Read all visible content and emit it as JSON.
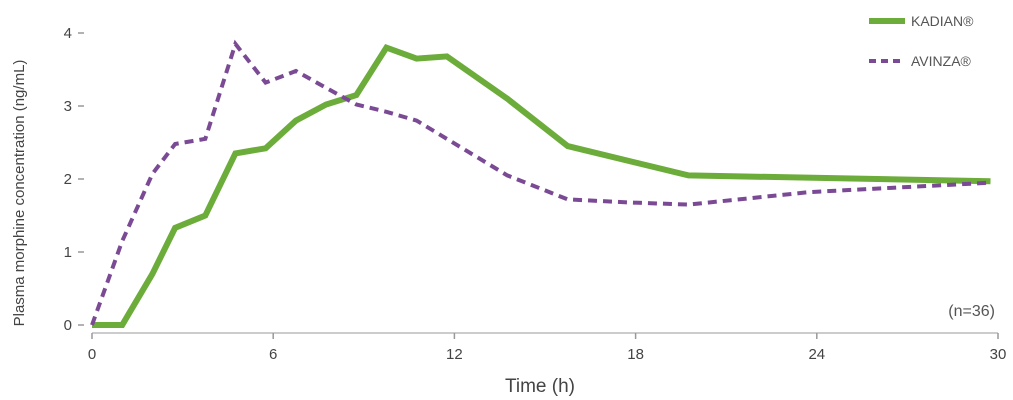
{
  "chart_data": {
    "type": "line",
    "xlabel": "Time (h)",
    "ylabel": "Plasma morphine concentration (ng/mL)",
    "xlim": [
      0,
      30
    ],
    "ylim": [
      0,
      4
    ],
    "x_ticks": [
      0,
      6,
      12,
      18,
      24,
      30
    ],
    "y_ticks": [
      0,
      1,
      2,
      3,
      4
    ],
    "grid": false,
    "legend_position": "top-right",
    "annotation": "(n=36)",
    "series": [
      {
        "name": "KADIAN®",
        "color": "#6cac3a",
        "style": "solid",
        "x": [
          0,
          1,
          2,
          2.75,
          3.75,
          4.75,
          5.75,
          6.75,
          7.75,
          8.75,
          9.75,
          10.75,
          11.75,
          13.75,
          15.75,
          19.75,
          29.75
        ],
        "y": [
          0.0,
          0.0,
          0.7,
          1.33,
          1.5,
          2.35,
          2.42,
          2.8,
          3.02,
          3.15,
          3.8,
          3.65,
          3.68,
          3.1,
          2.45,
          2.05,
          1.97
        ]
      },
      {
        "name": "AVINZA®",
        "color": "#7b4a94",
        "style": "dashed",
        "x": [
          0,
          1,
          2,
          2.75,
          3.75,
          4.75,
          5.75,
          6.75,
          7.75,
          8.75,
          9.75,
          10.75,
          11.75,
          13.75,
          15.75,
          17.75,
          19.75,
          23.75,
          29.75
        ],
        "y": [
          0.0,
          1.15,
          2.07,
          2.48,
          2.55,
          3.85,
          3.32,
          3.48,
          3.25,
          3.02,
          2.92,
          2.8,
          2.55,
          2.05,
          1.72,
          1.68,
          1.65,
          1.82,
          1.95
        ]
      }
    ]
  }
}
